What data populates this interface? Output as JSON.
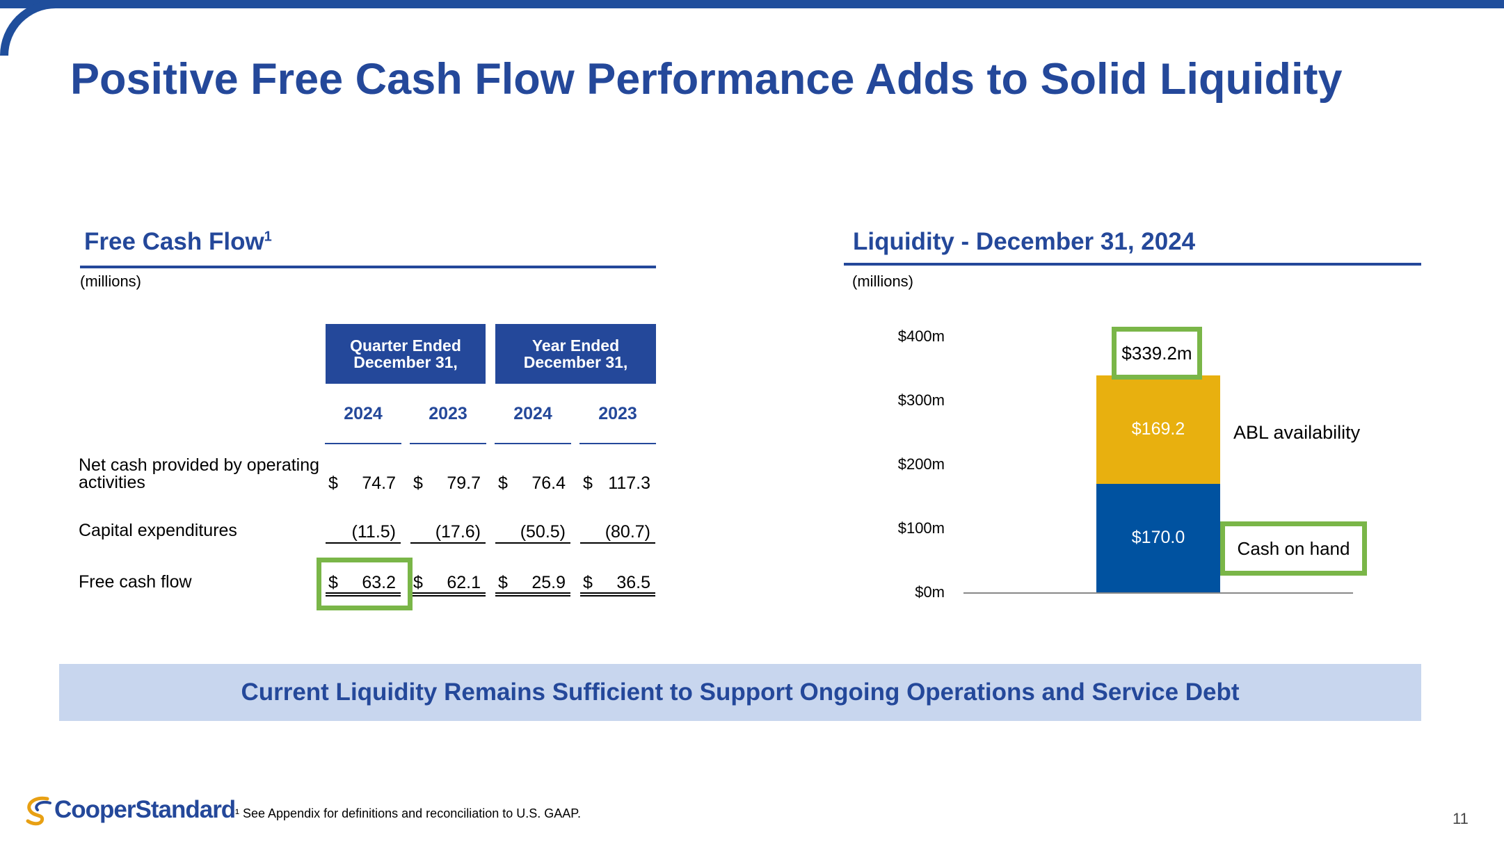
{
  "title": "Positive Free Cash Flow Performance Adds to Solid Liquidity",
  "left": {
    "heading": "Free Cash Flow",
    "heading_sup": "1",
    "units": "(millions)",
    "group_headers": [
      "Quarter Ended December 31,",
      "Year Ended December 31,"
    ],
    "years": [
      "2024",
      "2023",
      "2024",
      "2023"
    ],
    "rows": [
      {
        "label": "Net cash provided by operating activities",
        "dollar": [
          "$",
          "$",
          "$",
          "$"
        ],
        "values": [
          "74.7",
          "79.7",
          "76.4",
          "117.3"
        ]
      },
      {
        "label": "Capital expenditures",
        "dollar": [
          "",
          "",
          "",
          ""
        ],
        "values": [
          "(11.5)",
          "(17.6)",
          "(50.5)",
          "(80.7)"
        ]
      },
      {
        "label": "Free cash flow",
        "dollar": [
          "$",
          "$",
          "$",
          "$"
        ],
        "values": [
          "63.2",
          "62.1",
          "25.9",
          "36.5"
        ]
      }
    ]
  },
  "right": {
    "heading": "Liquidity - December 31, 2024",
    "units": "(millions)",
    "total_callout": "$339.2m",
    "abl_label": "ABL availability",
    "cash_label": "Cash on hand"
  },
  "chart_data": {
    "type": "bar",
    "stacked": true,
    "categories": [
      ""
    ],
    "series": [
      {
        "name": "Cash on hand",
        "values": [
          170.0
        ],
        "label": "$170.0",
        "color": "#0052a0"
      },
      {
        "name": "ABL availability",
        "values": [
          169.2
        ],
        "label": "$169.2",
        "color": "#e8b00f"
      }
    ],
    "total": 339.2,
    "ylim": [
      0,
      400
    ],
    "yticks": [
      "$0m",
      "$100m",
      "$200m",
      "$300m",
      "$400m"
    ],
    "grid": false,
    "legend": "none"
  },
  "banner": "Current Liquidity Remains Sufficient to Support Ongoing Operations and Service Debt",
  "logo": "CooperStandard",
  "footnote": "¹ See Appendix for definitions and reconciliation to U.S. GAAP.",
  "page_number": "11",
  "colors": {
    "brand_blue": "#24489a",
    "highlight_green": "#7ab648",
    "banner_bg": "#c8d6ee"
  }
}
